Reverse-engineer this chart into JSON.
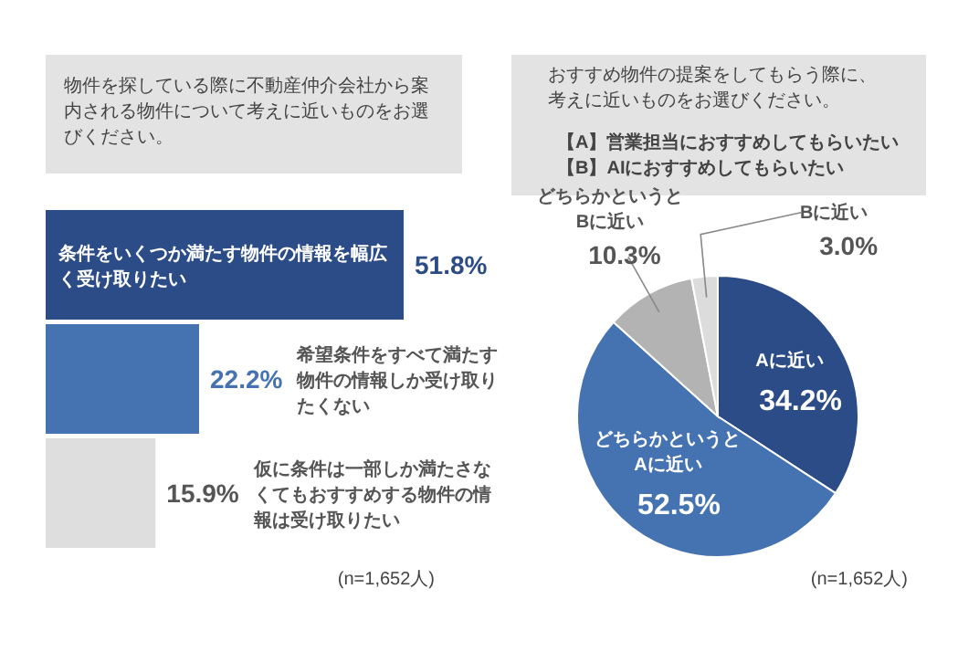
{
  "chart_data": [
    {
      "type": "bar",
      "orientation": "horizontal",
      "title": "物件を探している際に不動産仲介会社から案内される物件について考えに近いものをお選びください。",
      "categories": [
        "条件をいくつか満たす物件の情報を幅広く受け取りたい",
        "希望条件をすべて満たす物件の情報しか受け取りたくない",
        "仮に条件は一部しか満たさなくてもおすすめする物件の情報は受け取りたい"
      ],
      "values": [
        51.8,
        22.2,
        15.9
      ],
      "colors": [
        "#2c4c87",
        "#4573b1",
        "#dedede"
      ],
      "value_labels": [
        "51.8%",
        "22.2%",
        "15.9%"
      ],
      "annotations": [
        "(n=1,652人)"
      ]
    },
    {
      "type": "pie",
      "title": "おすすめ物件の提案をしてもらう際に、考えに近いものをお選びください。",
      "subtitle": "【A】営業担当におすすめしてもらいたい【B】AIにおすすめしてもらいたい",
      "categories": [
        "Aに近い",
        "どちらかというとAに近い",
        "どちらかというとBに近い",
        "Bに近い"
      ],
      "values": [
        34.2,
        52.5,
        10.3,
        3.0
      ],
      "colors": [
        "#2c4c87",
        "#4573b1",
        "#b3b3b3",
        "#dcdcdc"
      ],
      "value_labels": [
        "34.2%",
        "52.5%",
        "10.3%",
        "3.0%"
      ],
      "annotations": [
        "(n=1,652人)"
      ]
    }
  ]
}
